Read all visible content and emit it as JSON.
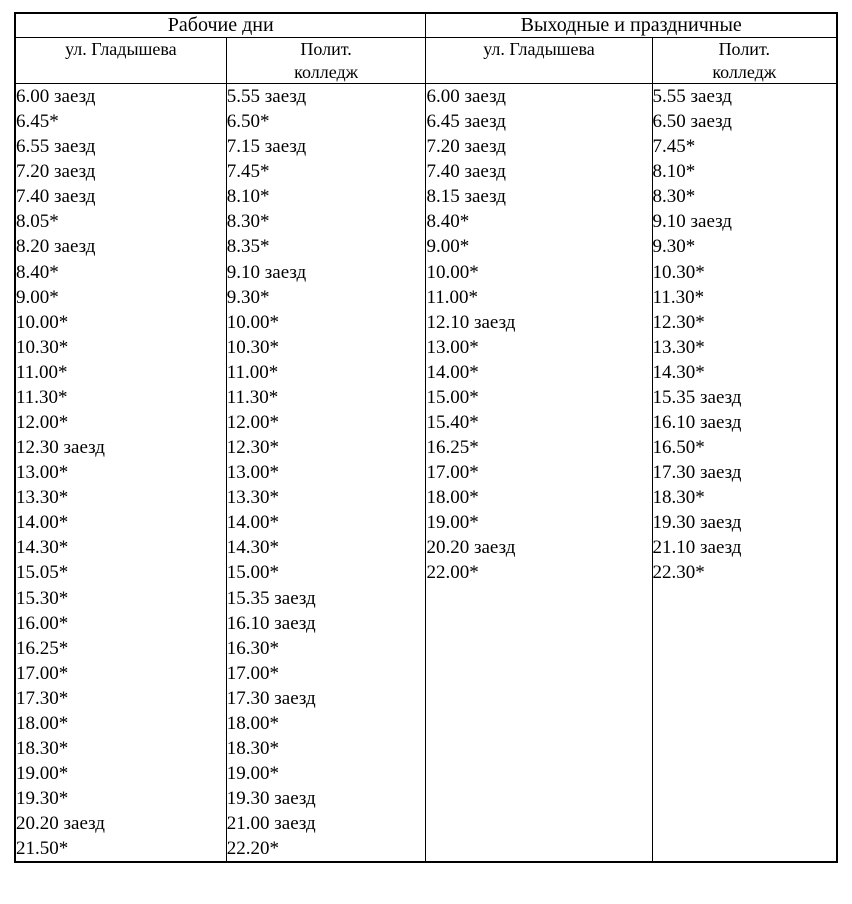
{
  "headers": {
    "workdays": "Рабочие дни",
    "weekends": "Выходные и праздничные",
    "col_gladysheva": "ул. Гладышева",
    "col_polit_l1": "Полит.",
    "col_polit_l2": "колледж"
  },
  "style": {
    "font_family": "Times New Roman",
    "header_fontsize_pt": 15,
    "cell_fontsize_pt": 14,
    "border_color": "#000000",
    "background_color": "#ffffff",
    "text_color": "#000000"
  },
  "schedule": {
    "workdays": {
      "gladysheva": [
        "6.00 заезд",
        "6.45*",
        "6.55 заезд",
        "7.20 заезд",
        "7.40 заезд",
        "8.05*",
        "8.20 заезд",
        "8.40*",
        "9.00*",
        "10.00*",
        "10.30*",
        "11.00*",
        "11.30*",
        "12.00*",
        "12.30 заезд",
        "13.00*",
        "13.30*",
        "14.00*",
        "14.30*",
        "15.05*",
        "15.30*",
        "16.00*",
        "16.25*",
        "17.00*",
        "17.30*",
        "18.00*",
        "18.30*",
        "19.00*",
        "19.30*",
        "20.20 заезд",
        "21.50*"
      ],
      "polit": [
        "5.55 заезд",
        "6.50*",
        "7.15 заезд",
        "7.45*",
        "8.10*",
        "8.30*",
        "8.35*",
        "9.10 заезд",
        "9.30*",
        "10.00*",
        "10.30*",
        "11.00*",
        "11.30*",
        "12.00*",
        "12.30*",
        "13.00*",
        "13.30*",
        "14.00*",
        "14.30*",
        "15.00*",
        "15.35 заезд",
        "16.10 заезд",
        "16.30*",
        "17.00*",
        "17.30 заезд",
        "18.00*",
        "18.30*",
        "19.00*",
        "19.30 заезд",
        "21.00 заезд",
        "22.20*"
      ]
    },
    "weekends": {
      "gladysheva": [
        "6.00 заезд",
        "6.45 заезд",
        "7.20 заезд",
        "7.40 заезд",
        "8.15 заезд",
        "8.40*",
        "9.00*",
        "10.00*",
        "11.00*",
        "12.10 заезд",
        "13.00*",
        "14.00*",
        "15.00*",
        "15.40*",
        "16.25*",
        "17.00*",
        "18.00*",
        "19.00*",
        "20.20 заезд",
        "22.00*"
      ],
      "polit": [
        "5.55 заезд",
        "6.50 заезд",
        "7.45*",
        "8.10*",
        "8.30*",
        "9.10 заезд",
        "9.30*",
        "10.30*",
        "11.30*",
        "12.30*",
        "13.30*",
        "14.30*",
        "15.35 заезд",
        "16.10 заезд",
        "16.50*",
        "17.30 заезд",
        "18.30*",
        "19.30 заезд",
        "21.10 заезд",
        "22.30*"
      ]
    }
  }
}
